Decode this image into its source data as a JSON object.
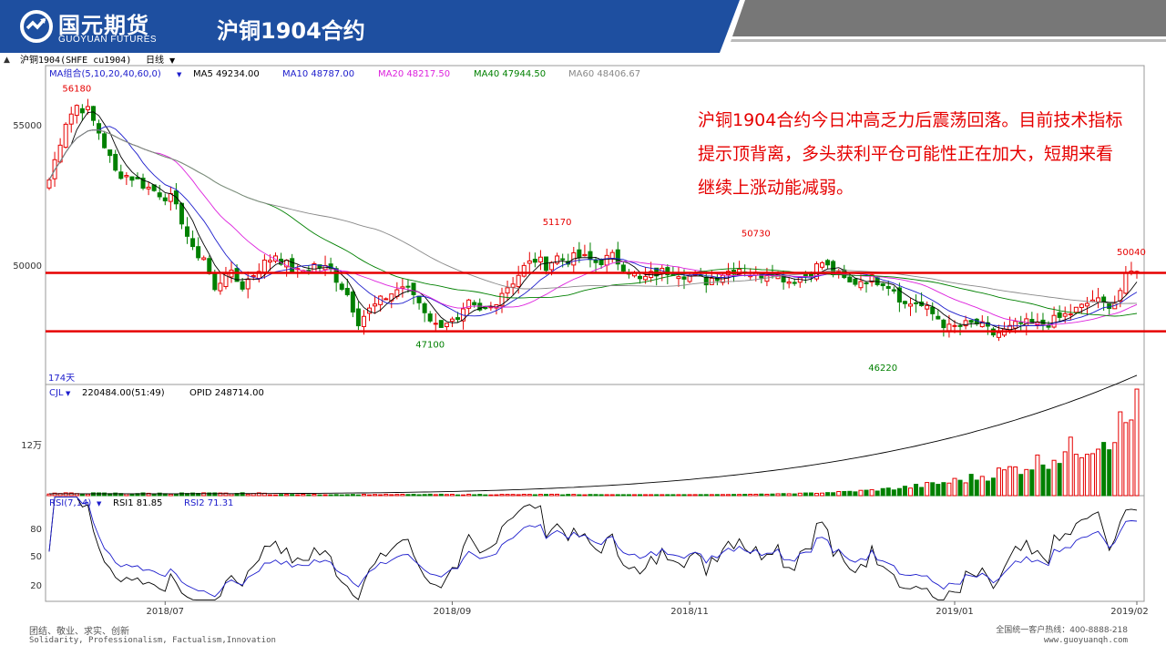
{
  "header": {
    "logo_cn": "国元期货",
    "logo_en": "GUOYUAN FUTURES",
    "title": "沪铜1904合约"
  },
  "colors": {
    "brand_blue": "#1e4fa0",
    "band_gray": "#777777",
    "up": "#e60000",
    "down": "#008000",
    "ma5": "#000000",
    "ma10": "#1c1ccc",
    "ma20": "#dd22dd",
    "ma40": "#008000",
    "ma60": "#888888"
  },
  "toolbar": {
    "symbol": "沪铜1904(SHFE cu1904)",
    "period": "日线"
  },
  "annotation": "沪铜1904合约今日冲高乏力后震荡回落。目前技术指标提示顶背离，多头获利平仓可能性正在加大，短期来看继续上涨动能减弱。",
  "chart_data": [
    {
      "type": "candlestick",
      "legend": {
        "group": "MA组合(5,10,20,40,60,0)",
        "ma5": "MA5 49234.00",
        "ma10": "MA10 48787.00",
        "ma20": "MA20 48217.50",
        "ma40": "MA40 47944.50",
        "ma60": "MA60 48406.67"
      },
      "yticks": [
        "55000",
        "50000"
      ],
      "ylim": [
        45300,
        57300
      ],
      "days_label": "174天",
      "support_resistance_lines": [
        49500,
        47300
      ],
      "annotations": [
        {
          "label": "56180",
          "value": 56180
        },
        {
          "label": "51170",
          "value": 51170
        },
        {
          "label": "47100",
          "value": 47100
        },
        {
          "label": "50730",
          "value": 50730
        },
        {
          "label": "46220",
          "value": 46220
        },
        {
          "label": "50040",
          "value": 50040
        }
      ],
      "xticks": [
        "2018/07",
        "2018/09",
        "2018/11",
        "2019/01",
        "2019/02"
      ],
      "anchors": [
        [
          0,
          53000
        ],
        [
          3,
          55200
        ],
        [
          5,
          55800
        ],
        [
          7,
          55600
        ],
        [
          9,
          54800
        ],
        [
          12,
          53300
        ],
        [
          15,
          53100
        ],
        [
          18,
          52700
        ],
        [
          20,
          52500
        ],
        [
          22,
          52300
        ],
        [
          24,
          51500
        ],
        [
          26,
          50300
        ],
        [
          28,
          50100
        ],
        [
          30,
          48800
        ],
        [
          32,
          49600
        ],
        [
          35,
          49000
        ],
        [
          38,
          49700
        ],
        [
          41,
          50200
        ],
        [
          43,
          49800
        ],
        [
          45,
          49500
        ],
        [
          48,
          49800
        ],
        [
          51,
          49600
        ],
        [
          54,
          48700
        ],
        [
          56,
          47700
        ],
        [
          58,
          48100
        ],
        [
          61,
          48600
        ],
        [
          64,
          49000
        ],
        [
          66,
          48700
        ],
        [
          68,
          48100
        ],
        [
          70,
          47500
        ],
        [
          72,
          47700
        ],
        [
          74,
          47600
        ],
        [
          76,
          48300
        ],
        [
          78,
          48000
        ],
        [
          80,
          48200
        ],
        [
          82,
          48800
        ],
        [
          84,
          49200
        ],
        [
          86,
          49700
        ],
        [
          88,
          50000
        ],
        [
          90,
          49800
        ],
        [
          92,
          50100
        ],
        [
          94,
          50000
        ],
        [
          96,
          50100
        ],
        [
          99,
          49900
        ],
        [
          102,
          50100
        ],
        [
          105,
          49600
        ],
        [
          107,
          49200
        ],
        [
          110,
          49500
        ],
        [
          113,
          49600
        ],
        [
          116,
          49400
        ],
        [
          119,
          49200
        ],
        [
          122,
          49500
        ],
        [
          125,
          49700
        ],
        [
          128,
          49400
        ],
        [
          131,
          49600
        ],
        [
          134,
          49200
        ],
        [
          137,
          49400
        ],
        [
          140,
          49900
        ],
        [
          142,
          49500
        ],
        [
          145,
          49100
        ],
        [
          148,
          49300
        ],
        [
          151,
          49200
        ],
        [
          153,
          48900
        ],
        [
          155,
          48300
        ],
        [
          157,
          48400
        ],
        [
          159,
          48100
        ],
        [
          161,
          47800
        ],
        [
          163,
          47400
        ],
        [
          165,
          47500
        ],
        [
          168,
          47600
        ],
        [
          171,
          47200
        ],
        [
          173,
          47300
        ],
        [
          176,
          47600
        ],
        [
          179,
          47500
        ],
        [
          182,
          47700
        ],
        [
          185,
          48000
        ],
        [
          187,
          48200
        ],
        [
          189,
          48500
        ],
        [
          191,
          48300
        ],
        [
          193,
          48400
        ],
        [
          195,
          49300
        ],
        [
          197,
          49700
        ]
      ]
    },
    {
      "type": "bar",
      "legend": {
        "name": "CJL",
        "value": "220484.00(51:49)",
        "opid": "OPID 248714.00"
      },
      "yticks": [
        "12万"
      ],
      "ylim": [
        0,
        230000
      ]
    },
    {
      "type": "line",
      "legend": {
        "name": "RSI(7,14)",
        "rsi1": "RSI1 81.85",
        "rsi2": "RSI2 71.31"
      },
      "yticks": [
        "80",
        "50",
        "20"
      ],
      "ylim": [
        10,
        95
      ]
    }
  ],
  "footer": {
    "motto_cn": "团结、敬业、求实、创新",
    "motto_en": "Solidarity, Professionalism, Factualism,Innovation",
    "hotline": "全国统一客户热线：400-8888-218",
    "website": "www.guoyuanqh.com"
  }
}
